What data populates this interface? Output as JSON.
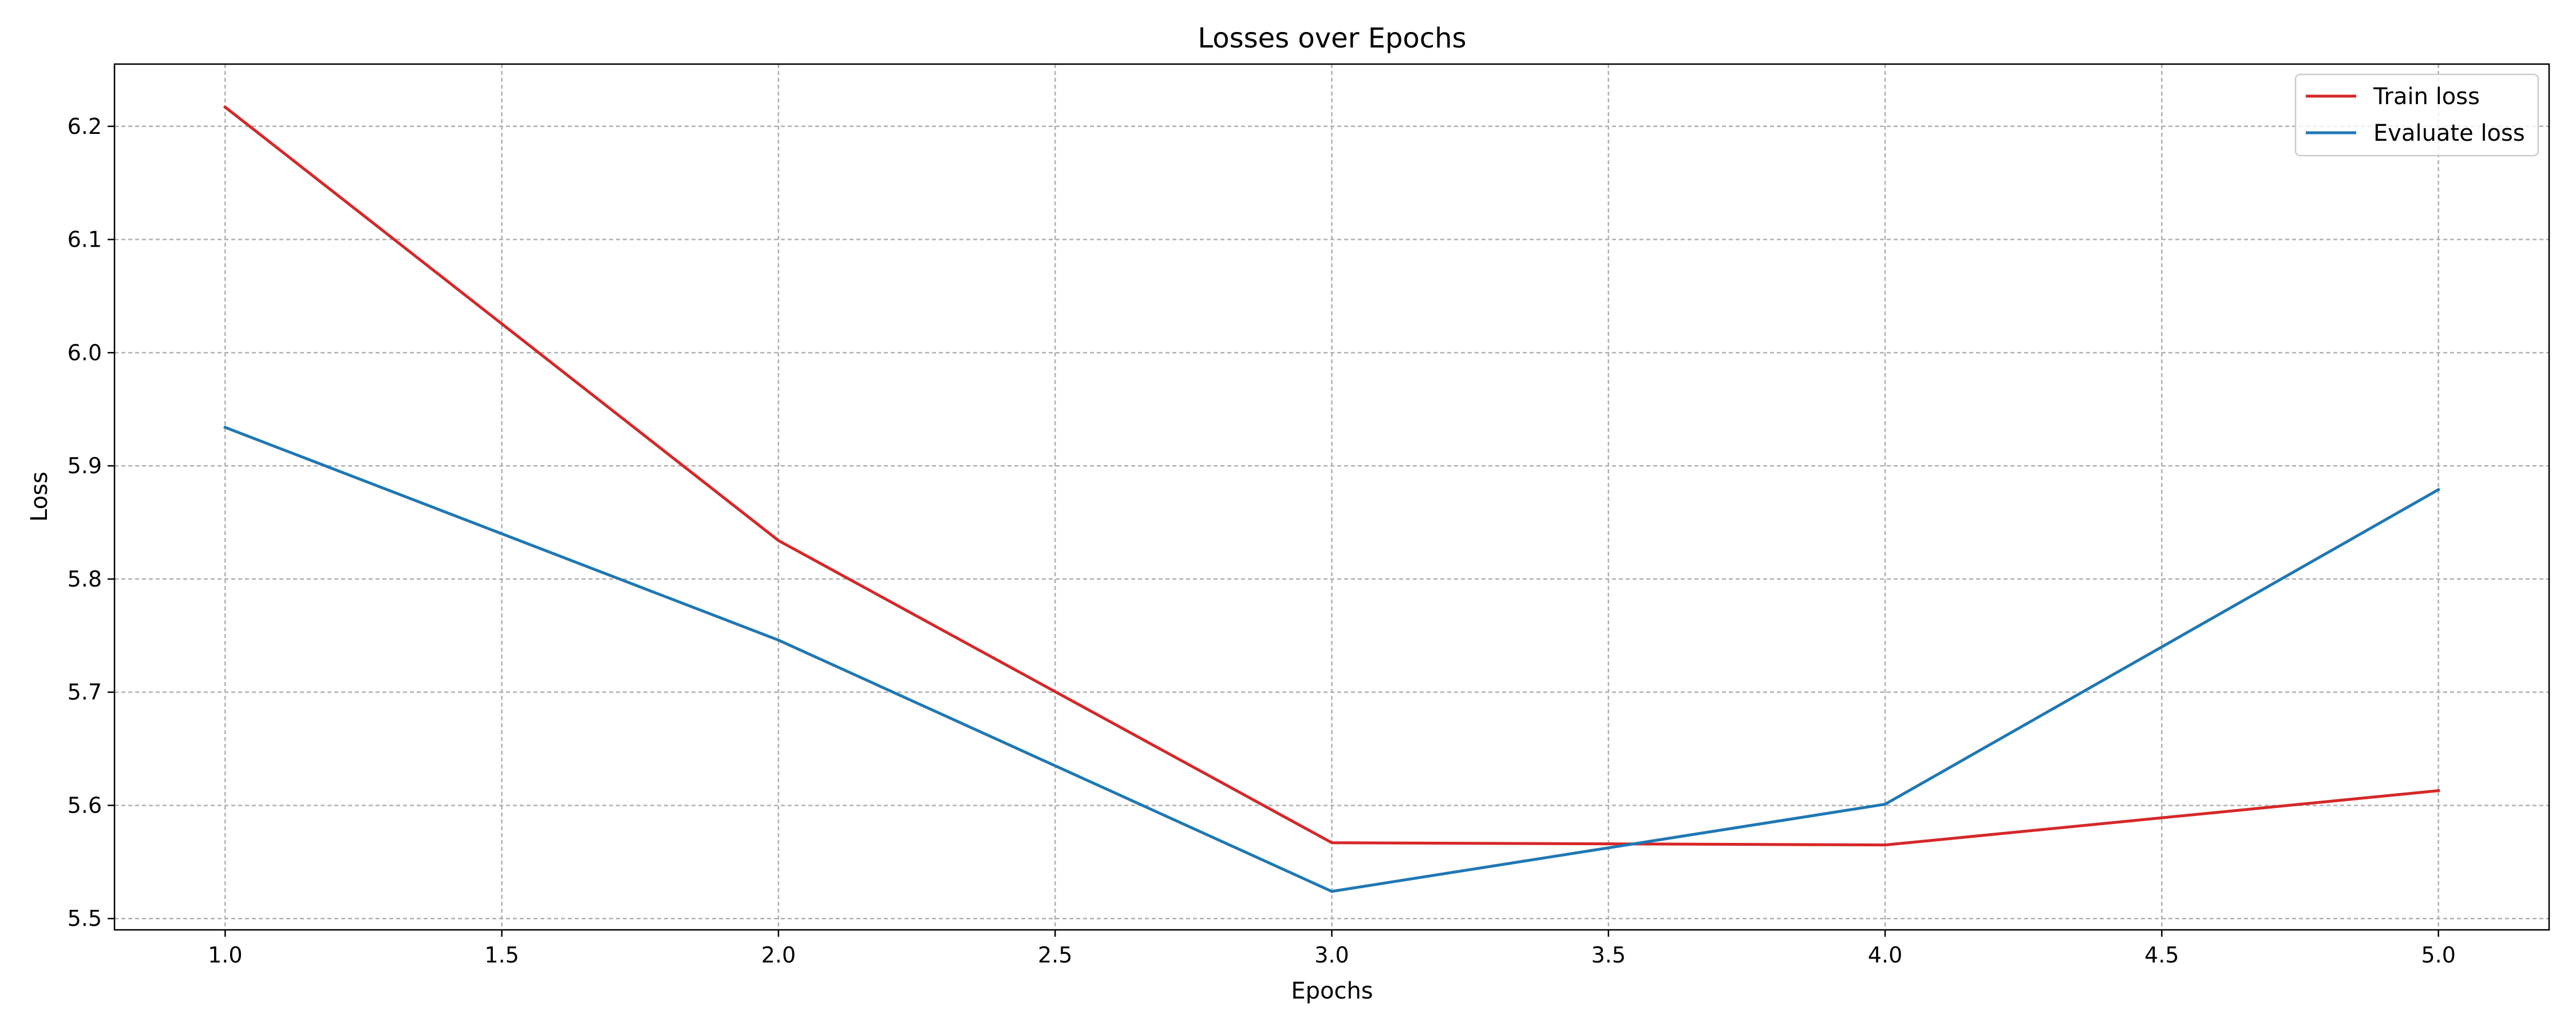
{
  "chart_data": {
    "type": "line",
    "title": "Losses over Epochs",
    "xlabel": "Epochs",
    "ylabel": "Loss",
    "x": [
      1,
      2,
      3,
      4,
      5
    ],
    "xlim": [
      0.8,
      5.2
    ],
    "ylim": [
      5.49,
      6.255
    ],
    "xticks": [
      "1.0",
      "1.5",
      "2.0",
      "2.5",
      "3.0",
      "3.5",
      "4.0",
      "4.5",
      "5.0"
    ],
    "yticks": [
      "5.5",
      "5.6",
      "5.7",
      "5.8",
      "5.9",
      "6.0",
      "6.1",
      "6.2"
    ],
    "grid": true,
    "legend_position": "top-right",
    "series": [
      {
        "name": "Train loss",
        "color": "#d62728",
        "values": [
          6.217,
          5.834,
          5.567,
          5.565,
          5.613
        ]
      },
      {
        "name": "Evaluate loss",
        "color": "#1f77b4",
        "values": [
          5.934,
          5.746,
          5.524,
          5.601,
          5.879
        ]
      }
    ]
  }
}
